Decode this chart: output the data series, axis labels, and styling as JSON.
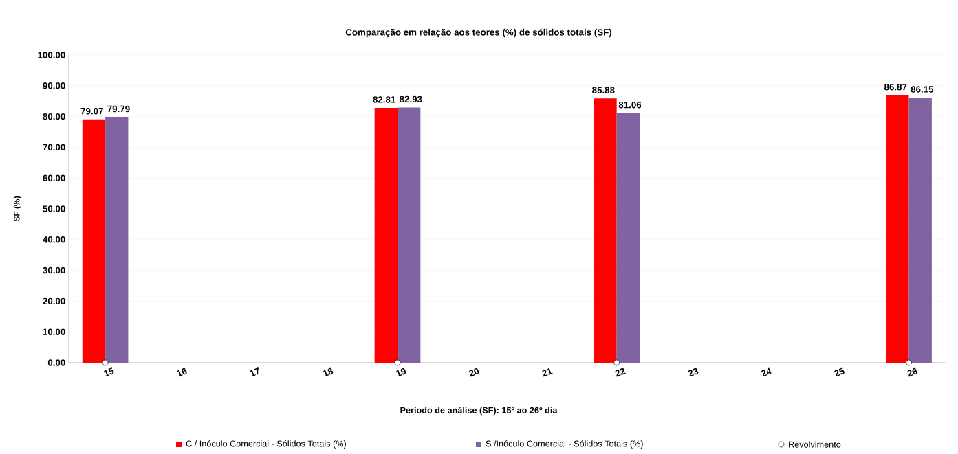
{
  "chart_data": {
    "type": "bar",
    "title": "Comparação  em relação aos teores (%) de sólidos totais (SF)",
    "xlabel": "Período de análise (SF): 15º ao 26º dia",
    "ylabel": "SF (%)",
    "categories": [
      "15",
      "16",
      "17",
      "18",
      "19",
      "20",
      "21",
      "22",
      "23",
      "24",
      "25",
      "26"
    ],
    "series": [
      {
        "name": "C / Inóculo Comercial - Sólidos Totais (%)",
        "color": "#ff0000",
        "values": [
          79.07,
          null,
          null,
          null,
          82.81,
          null,
          null,
          85.88,
          null,
          null,
          null,
          86.87
        ],
        "value_labels": [
          "79.07",
          null,
          null,
          null,
          "82.81",
          null,
          null,
          "85.88",
          null,
          null,
          null,
          "86.87"
        ]
      },
      {
        "name": "S /Inóculo Comercial - Sólidos Totais (%)",
        "color": "#8064a2",
        "values": [
          79.79,
          null,
          null,
          null,
          82.93,
          null,
          null,
          81.06,
          null,
          null,
          null,
          86.15
        ],
        "value_labels": [
          "79.79",
          null,
          null,
          null,
          "82.93",
          null,
          null,
          "81.06",
          null,
          null,
          null,
          "86.15"
        ]
      },
      {
        "name": "Revolvimento",
        "type": "scatter",
        "color": "#ffffff",
        "marker": "circle",
        "x": [
          "15",
          "19",
          "22",
          "26"
        ],
        "values": [
          0,
          0,
          0,
          0
        ]
      }
    ],
    "ylim": [
      0,
      100
    ],
    "yticks": [
      {
        "value": 0,
        "label": "0.00"
      },
      {
        "value": 10,
        "label": "10.00"
      },
      {
        "value": 20,
        "label": "20.00"
      },
      {
        "value": 30,
        "label": "30.00"
      },
      {
        "value": 40,
        "label": "40.00"
      },
      {
        "value": 50,
        "label": "50.00"
      },
      {
        "value": 60,
        "label": "60.00"
      },
      {
        "value": 70,
        "label": "70.00"
      },
      {
        "value": 80,
        "label": "80.00"
      },
      {
        "value": 90,
        "label": "90.00"
      },
      {
        "value": 100,
        "label": "100.00"
      }
    ],
    "grid": "y",
    "legend": "bottom"
  }
}
